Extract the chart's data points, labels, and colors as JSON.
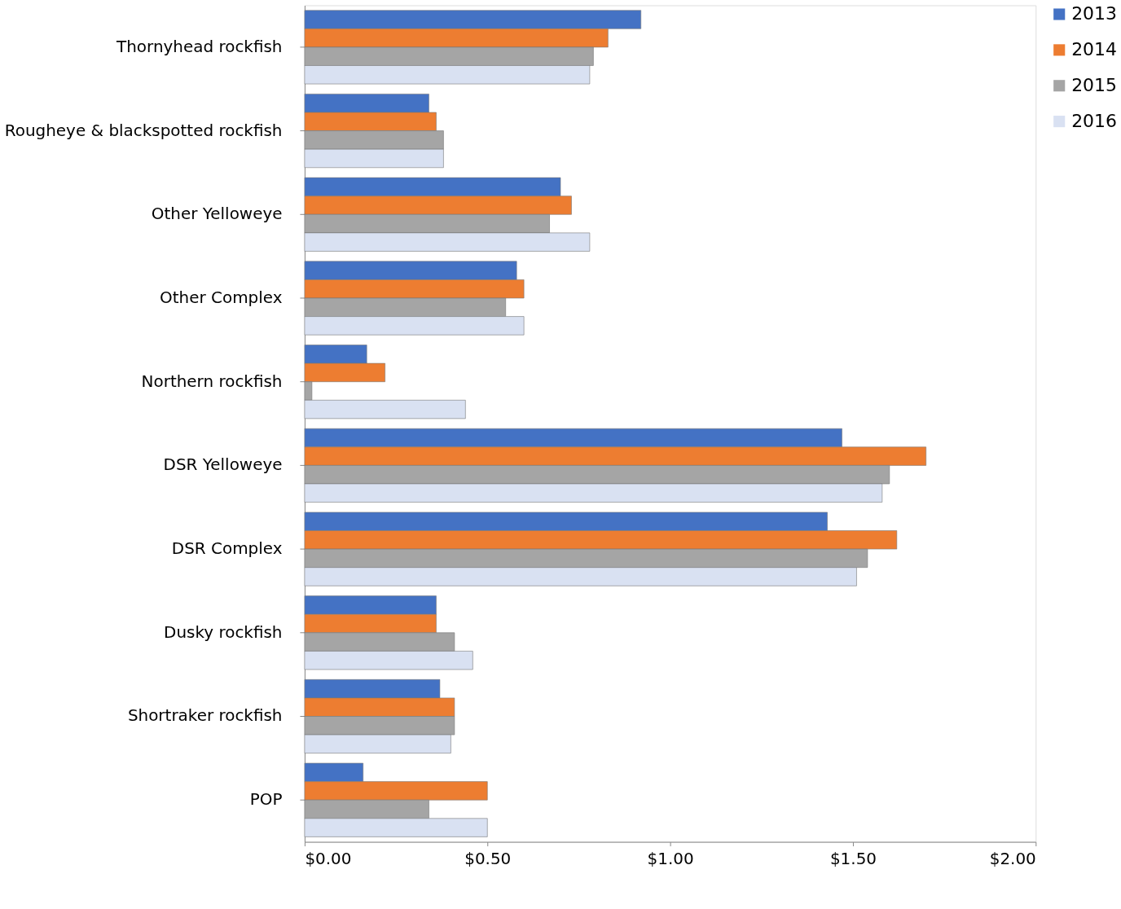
{
  "chart_data": {
    "type": "bar",
    "orientation": "horizontal",
    "categories": [
      "Thornyhead rockfish",
      "Rougheye & blackspotted rockfish",
      "Other Yelloweye",
      "Other Complex",
      "Northern rockfish",
      "DSR Yelloweye",
      "DSR Complex",
      "Dusky rockfish",
      "Shortraker rockfish",
      "POP"
    ],
    "series": [
      {
        "name": "2013",
        "color": "#4472c4",
        "values": [
          0.92,
          0.34,
          0.7,
          0.58,
          0.17,
          1.47,
          1.43,
          0.36,
          0.37,
          0.16
        ]
      },
      {
        "name": "2014",
        "color": "#ed7d31",
        "values": [
          0.83,
          0.36,
          0.73,
          0.6,
          0.22,
          1.7,
          1.62,
          0.36,
          0.41,
          0.5
        ]
      },
      {
        "name": "2015",
        "color": "#a5a5a5",
        "values": [
          0.79,
          0.38,
          0.67,
          0.55,
          0.02,
          1.6,
          1.54,
          0.41,
          0.41,
          0.34
        ]
      },
      {
        "name": "2016",
        "color": "#d9e1f2",
        "values": [
          0.78,
          0.38,
          0.78,
          0.6,
          0.44,
          1.58,
          1.51,
          0.46,
          0.4,
          0.5
        ]
      }
    ],
    "xlim": [
      0,
      2
    ],
    "xticks": [
      {
        "value": 0,
        "label": "$0.00"
      },
      {
        "value": 0.5,
        "label": "$0.50"
      },
      {
        "value": 1,
        "label": "$1.00"
      },
      {
        "value": 1.5,
        "label": "$1.50"
      },
      {
        "value": 2,
        "label": "$2.00"
      }
    ],
    "grid": false,
    "legend": "right"
  }
}
